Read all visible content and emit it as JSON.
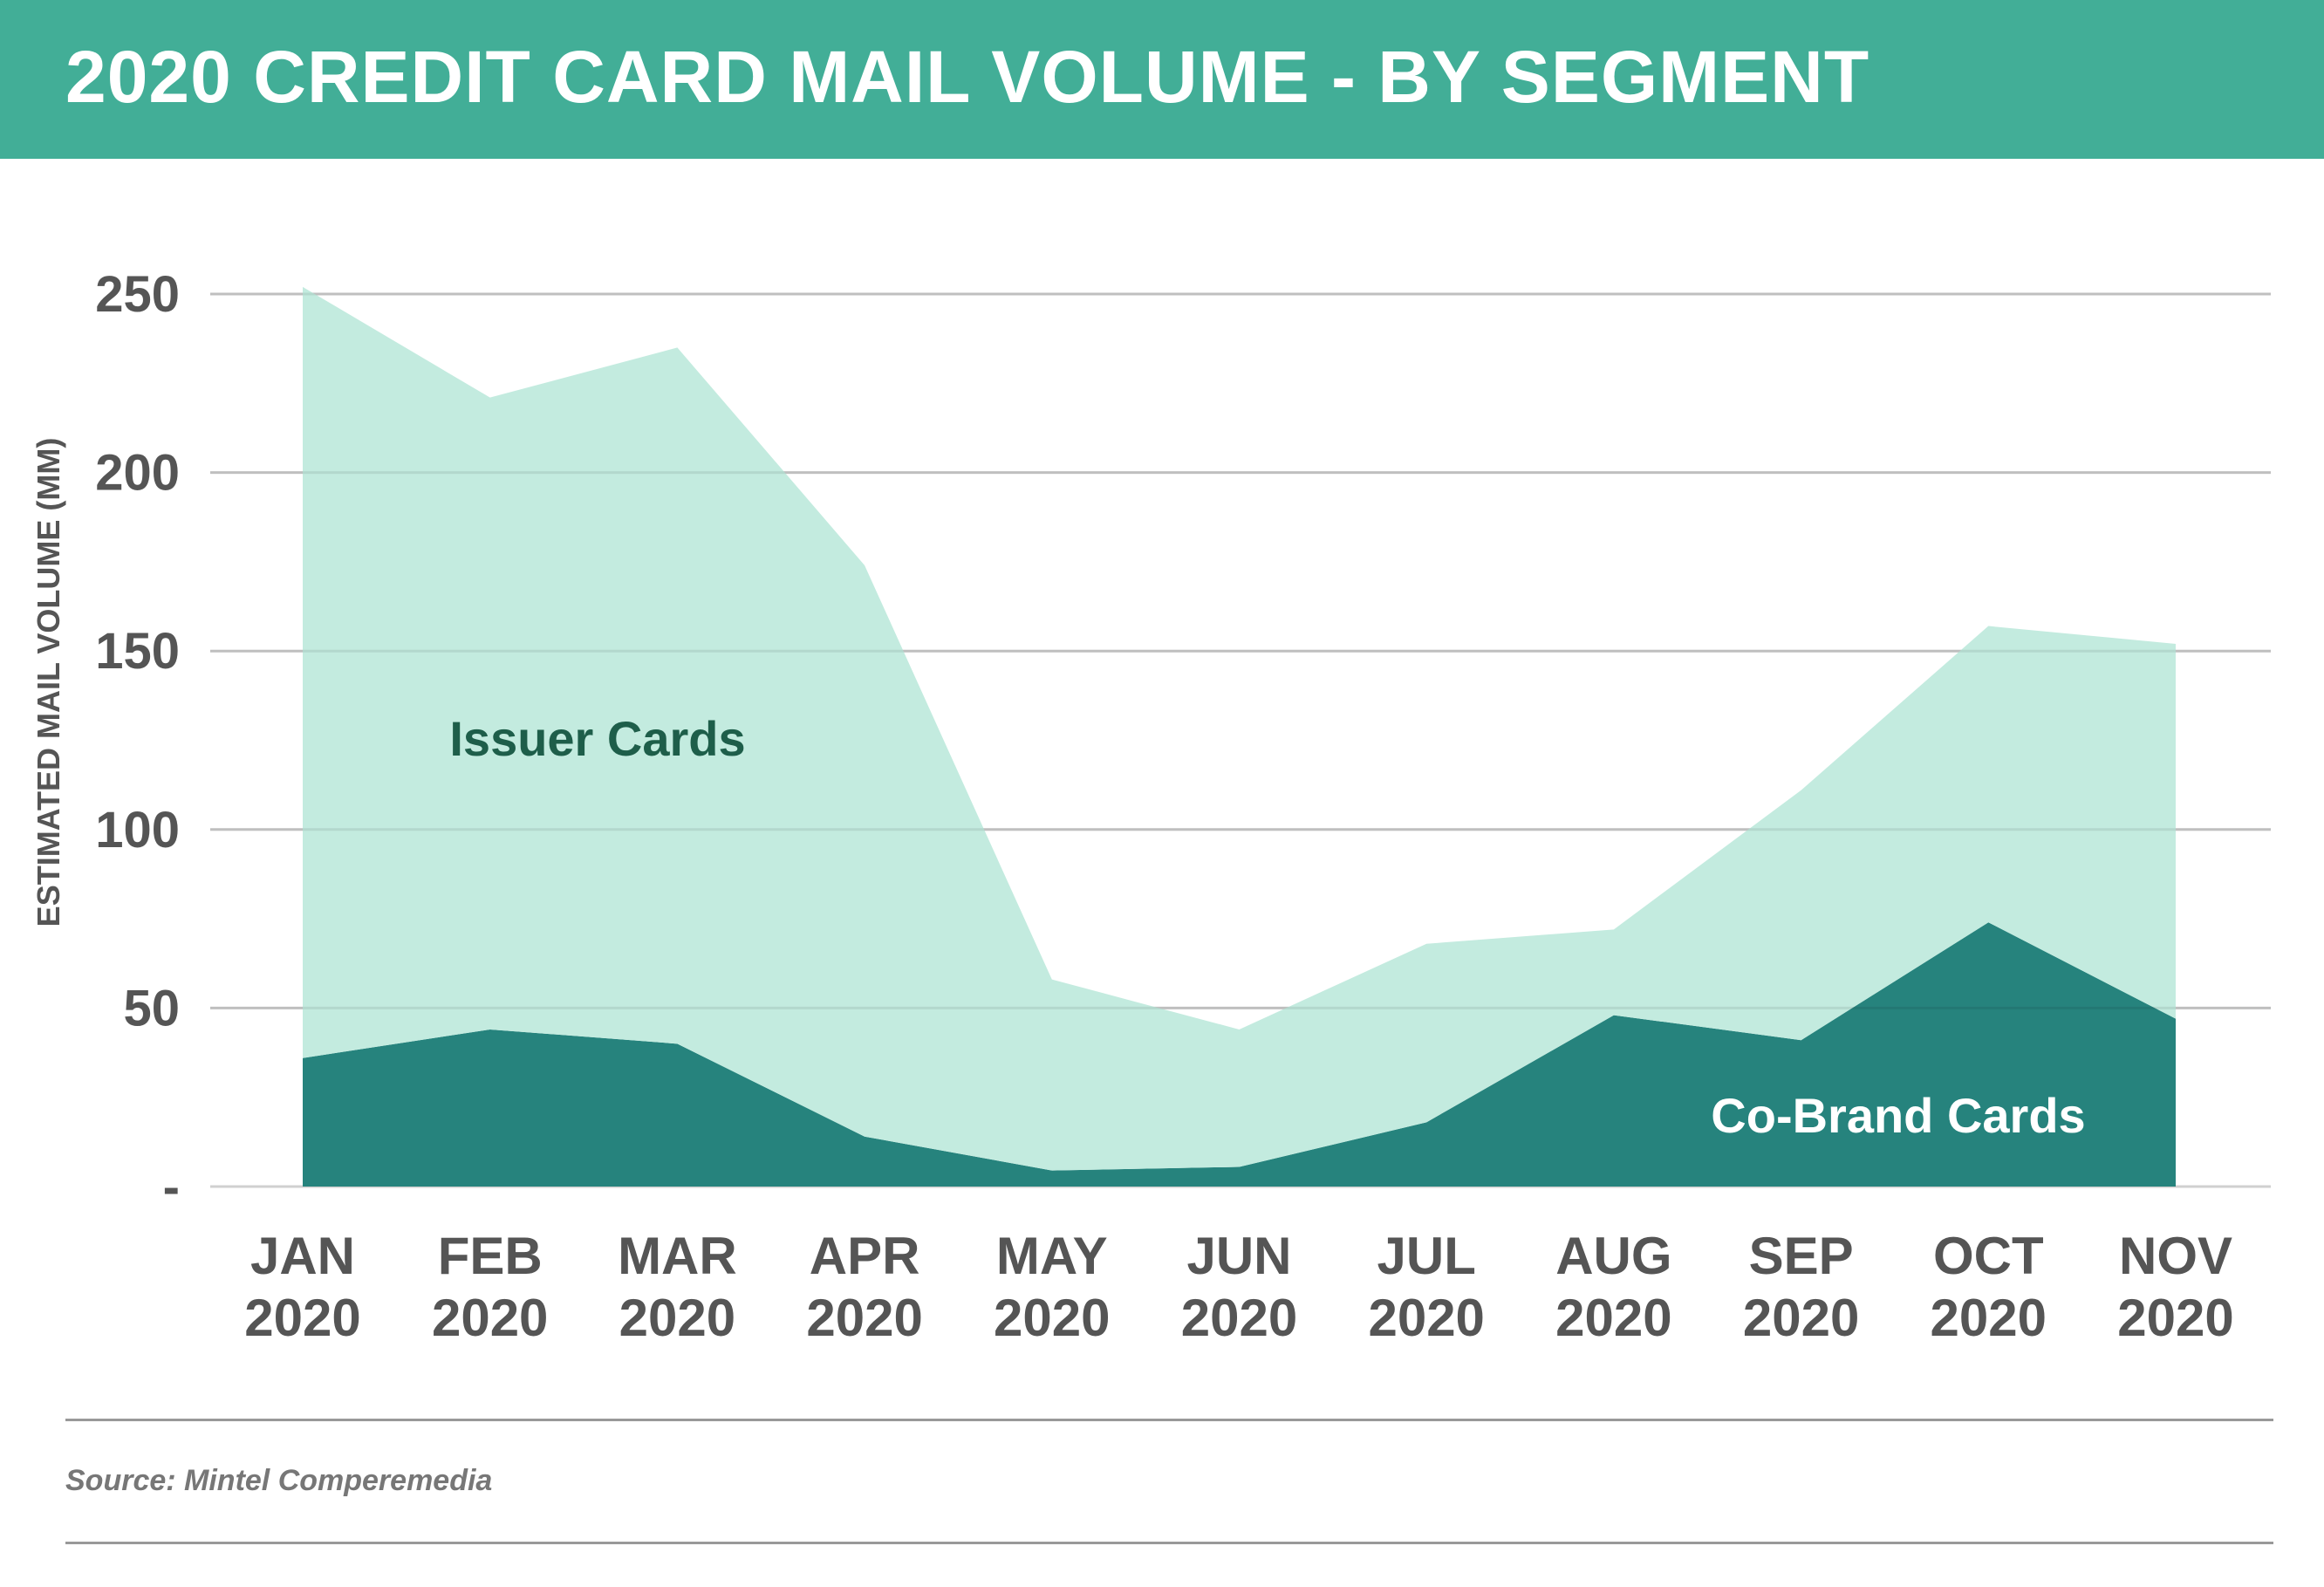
{
  "title": "2020 CREDIT CARD MAIL VOLUME - BY SEGMENT",
  "source": "Source: Mintel Comperemedia",
  "chart_data": {
    "type": "area",
    "stacked": true,
    "title": "2020 CREDIT CARD MAIL VOLUME - BY SEGMENT",
    "xlabel": "",
    "ylabel": "ESTIMATED MAIL VOLUME (MM)",
    "ylim": [
      0,
      250
    ],
    "yticks": [
      0,
      50,
      100,
      150,
      200,
      250
    ],
    "ytick_labels": [
      "-",
      "50",
      "100",
      "150",
      "200",
      "250"
    ],
    "grid": true,
    "categories": [
      [
        "JAN",
        "2020"
      ],
      [
        "FEB",
        "2020"
      ],
      [
        "MAR",
        "2020"
      ],
      [
        "APR",
        "2020"
      ],
      [
        "MAY",
        "2020"
      ],
      [
        "JUN",
        "2020"
      ],
      [
        "JUL",
        "2020"
      ],
      [
        "AUG",
        "2020"
      ],
      [
        "SEP",
        "2020"
      ],
      [
        "OCT",
        "2020"
      ],
      [
        "NOV",
        "2020"
      ]
    ],
    "series": [
      {
        "name": "Co-Brand Cards",
        "color": "#26837d",
        "label_color": "#ffffff",
        "values": [
          36,
          44,
          40,
          14,
          4.5,
          5.5,
          18,
          48,
          41,
          74,
          47
        ]
      },
      {
        "name": "Issuer Cards",
        "color": "#c3ebdf",
        "label_color": "#1e5e4a",
        "values": [
          216,
          177,
          195,
          160,
          53.5,
          38.5,
          50,
          24,
          70,
          83,
          105
        ]
      }
    ]
  },
  "colors": {
    "header": "#42ae97",
    "axis_text": "#555555",
    "grid": "#d0d0d0"
  }
}
